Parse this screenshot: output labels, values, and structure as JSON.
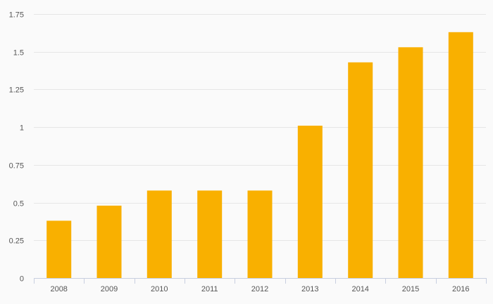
{
  "colors": {
    "background": "#fafafa",
    "bar": "#f9b000",
    "grid": "#e6e6e6",
    "axis": "#c8cfe0",
    "tick_text": "#555555"
  },
  "chart_data": {
    "type": "bar",
    "title": "",
    "xlabel": "",
    "ylabel": "",
    "categories": [
      "2008",
      "2009",
      "2010",
      "2011",
      "2012",
      "2013",
      "2014",
      "2015",
      "2016"
    ],
    "values": [
      0.38,
      0.48,
      0.58,
      0.58,
      0.58,
      1.01,
      1.43,
      1.53,
      1.63
    ],
    "ylim": [
      0,
      1.75
    ],
    "yticks": [
      0,
      0.25,
      0.5,
      0.75,
      1,
      1.25,
      1.5,
      1.75
    ],
    "ytick_labels": [
      "0",
      "0.25",
      "0.5",
      "0.75",
      "1",
      "1.25",
      "1.5",
      "1.75"
    ],
    "grid": true,
    "legend": "none"
  }
}
